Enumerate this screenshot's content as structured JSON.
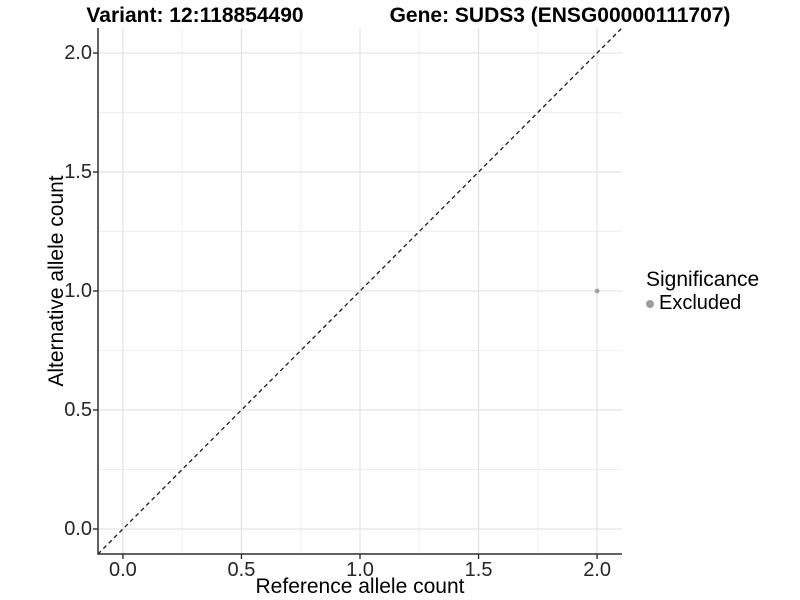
{
  "title": {
    "left": "Variant: 12:118854490",
    "right": "Gene: SUDS3 (ENSG00000111707)"
  },
  "chart_data": {
    "type": "scatter",
    "title": "Variant: 12:118854490    Gene: SUDS3 (ENSG00000111707)",
    "title_left": "Variant: 12:118854490",
    "title_right": "Gene: SUDS3 (ENSG00000111707)",
    "xlabel": "Reference allele count",
    "ylabel": "Alternative allele count",
    "xlim": [
      -0.105,
      2.105
    ],
    "ylim": [
      -0.105,
      2.105
    ],
    "x_ticks": [
      0.0,
      0.5,
      1.0,
      1.5,
      2.0
    ],
    "y_ticks": [
      0.0,
      0.5,
      1.0,
      1.5,
      2.0
    ],
    "x_minor_ticks": [
      0.25,
      0.75,
      1.25,
      1.75
    ],
    "y_minor_ticks": [
      0.25,
      0.75,
      1.25,
      1.75
    ],
    "tick_decimals": 1,
    "grid": "major+minor",
    "reference_line": {
      "style": "dashed",
      "slope": 1,
      "intercept": 0,
      "x1": -0.105,
      "y1": -0.105,
      "x2": 2.105,
      "y2": 2.105,
      "color": "#1a1a1a"
    },
    "series": [
      {
        "name": "Excluded",
        "color": "#a3a3a3",
        "point_radius": 2.4,
        "points": [
          {
            "x": 2.0,
            "y": 1.0
          }
        ]
      }
    ],
    "legend": {
      "title": "Significance",
      "position": "right",
      "items": [
        {
          "label": "Excluded",
          "color": "#9c9c9c"
        }
      ]
    }
  },
  "colors": {
    "background": "#ffffff",
    "grid_major": "#e3e3e3",
    "grid_minor": "#efefef",
    "axis_line": "#2f2f2f",
    "tick_mark": "#2f2f2f",
    "tick_text": "#262626",
    "reference_line": "#1a1a1a"
  }
}
